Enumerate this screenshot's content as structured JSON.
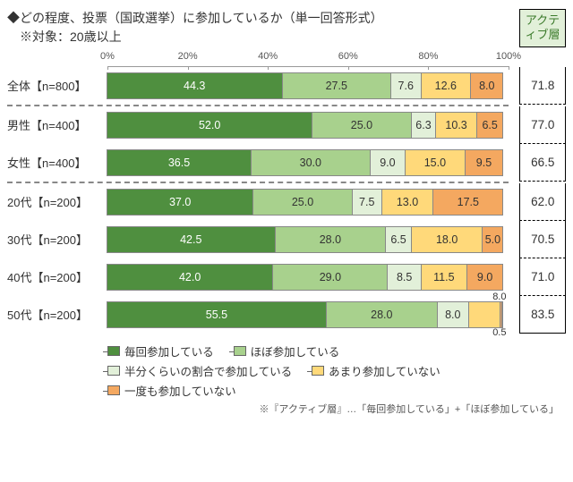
{
  "title": "◆どの程度、投票（国政選挙）に参加しているか（単一回答形式）",
  "subtitle": "※対象：20歳以上",
  "active_header": "アクティブ層",
  "axis": {
    "ticks": [
      "0%",
      "20%",
      "40%",
      "60%",
      "80%",
      "100%"
    ],
    "positions": [
      0,
      20,
      40,
      60,
      80,
      100
    ]
  },
  "colors": {
    "c1": "#4f8f3f",
    "c2": "#a8d18d",
    "c3": "#e2f0d9",
    "c4": "#ffd97a",
    "c5": "#f4a860",
    "border": "#888888",
    "text": "#333333",
    "active_bg": "#e2f0d9",
    "active_text": "#3b7a2a"
  },
  "series_labels": [
    "毎回参加している",
    "ほぼ参加している",
    "半分くらいの割合で参加している",
    "あまり参加していない",
    "一度も参加していない"
  ],
  "groups": [
    {
      "rows": [
        {
          "label": "全体【n=800】",
          "v": [
            44.3,
            27.5,
            7.6,
            12.6,
            8.0
          ],
          "active": "71.8"
        }
      ]
    },
    {
      "rows": [
        {
          "label": "男性【n=400】",
          "v": [
            52.0,
            25.0,
            6.3,
            10.3,
            6.5
          ],
          "active": "77.0"
        },
        {
          "label": "女性【n=400】",
          "v": [
            36.5,
            30.0,
            9.0,
            15.0,
            9.5
          ],
          "active": "66.5"
        }
      ]
    },
    {
      "rows": [
        {
          "label": "20代【n=200】",
          "v": [
            37.0,
            25.0,
            7.5,
            13.0,
            17.5
          ],
          "active": "62.0"
        },
        {
          "label": "30代【n=200】",
          "v": [
            42.5,
            28.0,
            6.5,
            18.0,
            5.0
          ],
          "active": "70.5"
        },
        {
          "label": "40代【n=200】",
          "v": [
            42.0,
            29.0,
            8.5,
            11.5,
            9.0
          ],
          "active": "71.0"
        },
        {
          "label": "50代【n=200】",
          "v": [
            55.5,
            28.0,
            8.0,
            8.0,
            0.5
          ],
          "active": "83.5",
          "outside": [
            {
              "idx": 3,
              "text": "8.0"
            },
            {
              "idx": 4,
              "text": "0.5"
            }
          ]
        }
      ]
    }
  ],
  "footnote": "※『アクティブ層』…「毎回参加している」+「ほぼ参加している」"
}
